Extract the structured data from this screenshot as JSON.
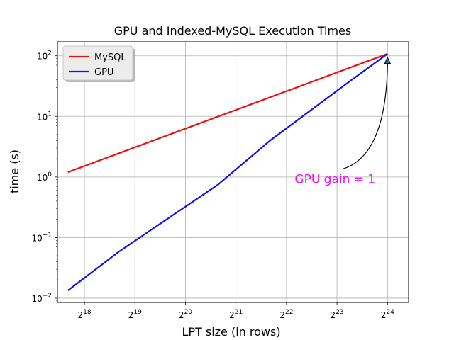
{
  "chart_data": {
    "type": "line",
    "title": "GPU and Indexed-MySQL Execution Times",
    "xlabel": "LPT size (in rows)",
    "ylabel": "time (s)",
    "x_scale": "log2",
    "y_scale": "log10",
    "xlim": [
      181000,
      22400000
    ],
    "ylim": [
      0.0085,
      170
    ],
    "x_ticks": [
      262144,
      524288,
      1048576,
      2097152,
      4194304,
      8388608,
      16777216
    ],
    "x_tick_labels": [
      {
        "base": "2",
        "exp": "18"
      },
      {
        "base": "2",
        "exp": "19"
      },
      {
        "base": "2",
        "exp": "20"
      },
      {
        "base": "2",
        "exp": "21"
      },
      {
        "base": "2",
        "exp": "22"
      },
      {
        "base": "2",
        "exp": "23"
      },
      {
        "base": "2",
        "exp": "24"
      }
    ],
    "y_ticks": [
      0.01,
      0.1,
      1,
      10,
      100
    ],
    "y_tick_labels": [
      {
        "base": "10",
        "exp": "−2"
      },
      {
        "base": "10",
        "exp": "−1"
      },
      {
        "base": "10",
        "exp": "0"
      },
      {
        "base": "10",
        "exp": "1"
      },
      {
        "base": "10",
        "exp": "2"
      }
    ],
    "grid": true,
    "legend_position": "top-left",
    "series": [
      {
        "name": "MySQL",
        "color": "#ee1111",
        "points": [
          [
            209000,
            1.2
          ],
          [
            16777216,
            108
          ]
        ]
      },
      {
        "name": "GPU",
        "color": "#1111ee",
        "points": [
          [
            209000,
            0.0134
          ],
          [
            419000,
            0.058
          ],
          [
            1640000,
            0.75
          ],
          [
            3350000,
            4.0
          ],
          [
            10000000,
            38
          ],
          [
            16777216,
            108
          ]
        ]
      }
    ],
    "annotation": {
      "text": "GPU gain = 1",
      "color": "#ee11ee",
      "target": [
        16777216,
        85
      ],
      "text_anchor_point": [
        9000000,
        1.35
      ]
    }
  }
}
